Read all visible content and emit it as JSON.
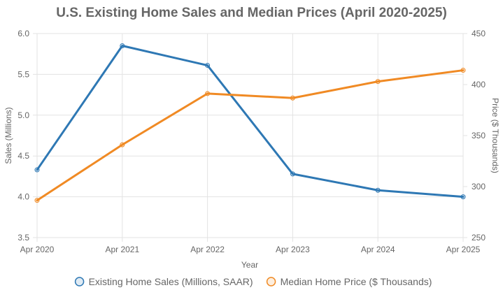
{
  "chart_data": {
    "type": "line",
    "title": "U.S. Existing Home Sales and Median Prices (April 2020-2025)",
    "xlabel": "Year",
    "ylabel_left": "Sales (Millions)",
    "ylabel_right": "Price ($ Thousands)",
    "categories": [
      "Apr 2020",
      "Apr 2021",
      "Apr 2022",
      "Apr 2023",
      "Apr 2024",
      "Apr 2025"
    ],
    "ylim_left": [
      3.5,
      6.0
    ],
    "ylim_right": [
      250,
      450
    ],
    "yticks_left": [
      "3.5",
      "4.0",
      "4.5",
      "5.0",
      "5.5",
      "6.0"
    ],
    "yticks_right": [
      "250",
      "300",
      "350",
      "400",
      "450"
    ],
    "grid": true,
    "legend_position": "bottom",
    "series": [
      {
        "name": "Existing Home Sales (Millions, SAAR)",
        "axis": "left",
        "color": "#2e78b4",
        "fill": "rgba(46,120,180,0.15)",
        "values": [
          4.33,
          5.85,
          5.61,
          4.28,
          4.08,
          4.0
        ]
      },
      {
        "name": "Median Home Price ($ Thousands)",
        "axis": "right",
        "color": "#f08a24",
        "fill": "rgba(240,138,36,0.15)",
        "values": [
          286.5,
          341.0,
          391.2,
          386.8,
          403.0,
          414.0
        ]
      }
    ]
  }
}
